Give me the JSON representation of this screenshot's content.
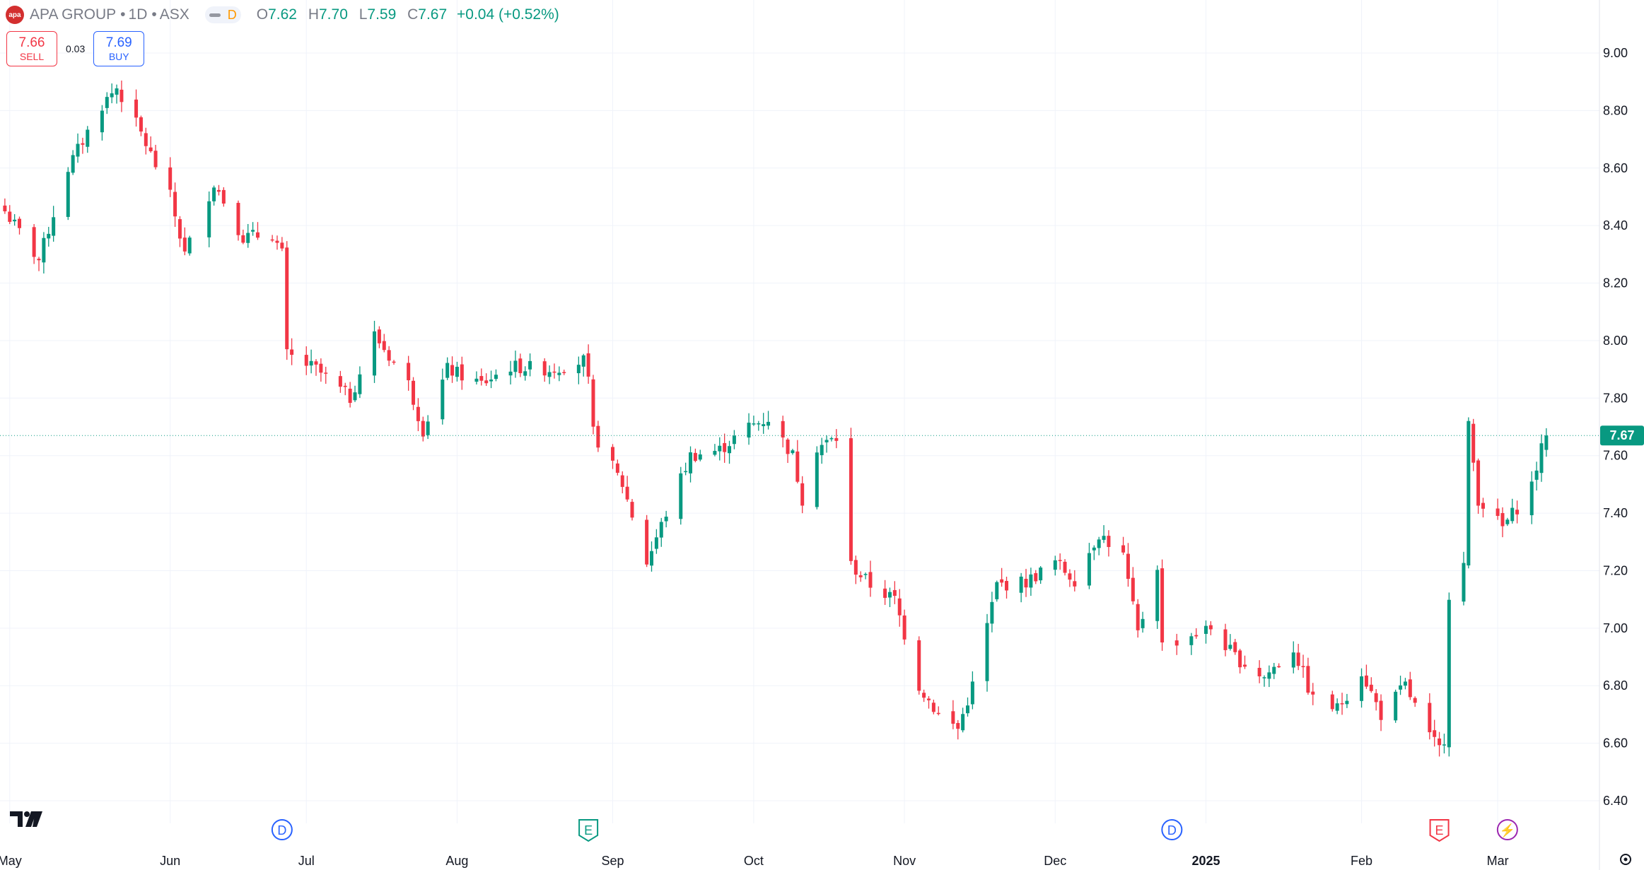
{
  "header": {
    "logo_text": "apa",
    "symbol_name": "APA GROUP",
    "separator": "•",
    "interval": "1D",
    "exchange": "ASX",
    "data_status": "D",
    "open_label": "O",
    "open": "7.62",
    "high_label": "H",
    "high": "7.70",
    "low_label": "L",
    "low": "7.59",
    "close_label": "C",
    "close": "7.67",
    "change": "+0.04 (+0.52%)"
  },
  "trade": {
    "sell_price": "7.66",
    "sell_label": "SELL",
    "spread": "0.03",
    "buy_price": "7.69",
    "buy_label": "BUY"
  },
  "colors": {
    "up": "#089981",
    "down": "#f23645",
    "grid": "#f0f3fa",
    "axis_text": "#787b86",
    "dividend_marker": "#2962ff",
    "earnings_marker": "#089981",
    "earnings_marker_2": "#f23645",
    "split_marker": "#9c27b0"
  },
  "chart_data": {
    "type": "candlestick",
    "title": "APA GROUP • 1D • ASX",
    "ylim": [
      6.4,
      9.1
    ],
    "grid": true,
    "last_price": "7.67",
    "y_ticks": [
      "9.00",
      "8.80",
      "8.60",
      "8.40",
      "8.20",
      "8.00",
      "7.80",
      "7.60",
      "7.40",
      "7.20",
      "7.00",
      "6.80",
      "6.60",
      "6.40"
    ],
    "x_ticks": [
      {
        "label": "May",
        "date": "2024-05-01"
      },
      {
        "label": "Jun",
        "date": "2024-06-03"
      },
      {
        "label": "Jul",
        "date": "2024-07-01"
      },
      {
        "label": "Aug",
        "date": "2024-08-01"
      },
      {
        "label": "Sep",
        "date": "2024-09-02"
      },
      {
        "label": "Oct",
        "date": "2024-10-01"
      },
      {
        "label": "Nov",
        "date": "2024-11-01"
      },
      {
        "label": "Dec",
        "date": "2024-12-02"
      },
      {
        "label": "2025",
        "date": "2025-01-02"
      },
      {
        "label": "Feb",
        "date": "2025-02-03"
      },
      {
        "label": "Mar",
        "date": "2025-03-03"
      }
    ],
    "event_markers": [
      {
        "type": "dividend",
        "label": "D",
        "date": "2024-06-26"
      },
      {
        "type": "earnings",
        "label": "E",
        "date": "2024-08-28"
      },
      {
        "type": "dividend",
        "label": "D",
        "date": "2024-12-26"
      },
      {
        "type": "earnings",
        "label": "E",
        "date": "2025-02-19"
      },
      {
        "type": "split",
        "label": "⚡",
        "date": "2025-03-05"
      }
    ],
    "anchors": [
      [
        "2024-04-30",
        8.45
      ],
      [
        "2024-05-07",
        8.28
      ],
      [
        "2024-05-13",
        8.6
      ],
      [
        "2024-05-20",
        8.82
      ],
      [
        "2024-05-23",
        8.88
      ],
      [
        "2024-05-28",
        8.72
      ],
      [
        "2024-06-03",
        8.5
      ],
      [
        "2024-06-06",
        8.3
      ],
      [
        "2024-06-12",
        8.55
      ],
      [
        "2024-06-18",
        8.36
      ],
      [
        "2024-06-24",
        8.37
      ],
      [
        "2024-06-26",
        8.3
      ],
      [
        "2024-06-27",
        7.95
      ],
      [
        "2024-07-03",
        7.9
      ],
      [
        "2024-07-10",
        7.8
      ],
      [
        "2024-07-15",
        8.02
      ],
      [
        "2024-07-22",
        7.85
      ],
      [
        "2024-07-25",
        7.69
      ],
      [
        "2024-07-30",
        7.9
      ],
      [
        "2024-08-06",
        7.85
      ],
      [
        "2024-08-12",
        7.91
      ],
      [
        "2024-08-20",
        7.9
      ],
      [
        "2024-08-27",
        7.93
      ],
      [
        "2024-08-28",
        7.85
      ],
      [
        "2024-08-29",
        7.68
      ],
      [
        "2024-09-04",
        7.5
      ],
      [
        "2024-09-09",
        7.23
      ],
      [
        "2024-09-13",
        7.4
      ],
      [
        "2024-09-18",
        7.6
      ],
      [
        "2024-09-24",
        7.62
      ],
      [
        "2024-09-30",
        7.7
      ],
      [
        "2024-10-04",
        7.73
      ],
      [
        "2024-10-09",
        7.6
      ],
      [
        "2024-10-11",
        7.45
      ],
      [
        "2024-10-14",
        7.63
      ],
      [
        "2024-10-18",
        7.66
      ],
      [
        "2024-10-21",
        7.22
      ],
      [
        "2024-10-25",
        7.15
      ],
      [
        "2024-10-30",
        7.1
      ],
      [
        "2024-11-04",
        6.8
      ],
      [
        "2024-11-08",
        6.7
      ],
      [
        "2024-11-12",
        6.65
      ],
      [
        "2024-11-15",
        6.8
      ],
      [
        "2024-11-20",
        7.15
      ],
      [
        "2024-11-26",
        7.16
      ],
      [
        "2024-12-02",
        7.23
      ],
      [
        "2024-12-06",
        7.17
      ],
      [
        "2024-12-11",
        7.33
      ],
      [
        "2024-12-16",
        7.25
      ],
      [
        "2024-12-19",
        6.98
      ],
      [
        "2024-12-23",
        7.22
      ],
      [
        "2024-12-24",
        6.94
      ],
      [
        "2025-01-03",
        7.0
      ],
      [
        "2025-01-08",
        6.9
      ],
      [
        "2025-01-14",
        6.83
      ],
      [
        "2025-01-20",
        6.93
      ],
      [
        "2025-01-24",
        6.75
      ],
      [
        "2025-01-29",
        6.72
      ],
      [
        "2025-02-03",
        6.85
      ],
      [
        "2025-02-07",
        6.7
      ],
      [
        "2025-02-12",
        6.8
      ],
      [
        "2025-02-17",
        6.62
      ],
      [
        "2025-02-19",
        6.58
      ],
      [
        "2025-02-20",
        6.62
      ],
      [
        "2025-02-21",
        7.12
      ],
      [
        "2025-02-24",
        7.22
      ],
      [
        "2025-02-25",
        7.7
      ],
      [
        "2025-02-27",
        7.45
      ],
      [
        "2025-03-04",
        7.35
      ],
      [
        "2025-03-07",
        7.42
      ],
      [
        "2025-03-10",
        7.5
      ],
      [
        "2025-03-12",
        7.62
      ],
      [
        "2025-03-13",
        7.67
      ]
    ]
  }
}
